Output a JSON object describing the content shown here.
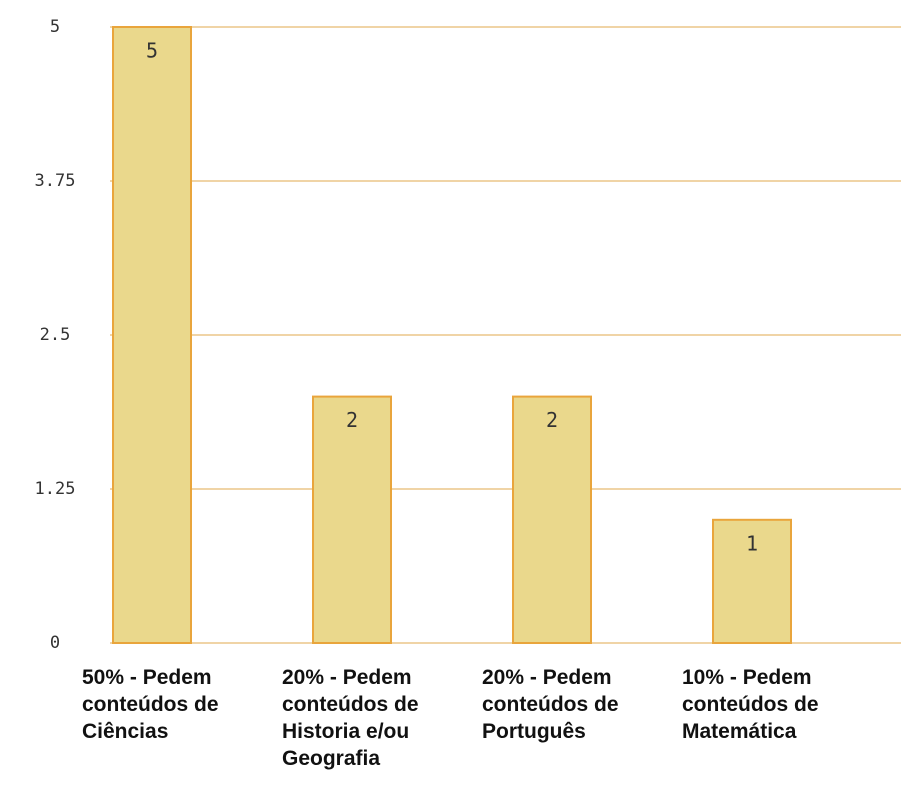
{
  "chart_data": {
    "type": "bar",
    "categories": [
      "50% - Pedem conteúdos de Ciências",
      "20% - Pedem conteúdos de Historia e/ou Geografia",
      "20% - Pedem conteúdos de Português",
      "10% - Pedem conteúdos de Matemática"
    ],
    "values": [
      5,
      2,
      2,
      1
    ],
    "color": "#ead88c",
    "ylim": [
      0,
      5
    ],
    "yticks": [
      0,
      1.25,
      2.5,
      3.75,
      5
    ],
    "grid": true
  }
}
